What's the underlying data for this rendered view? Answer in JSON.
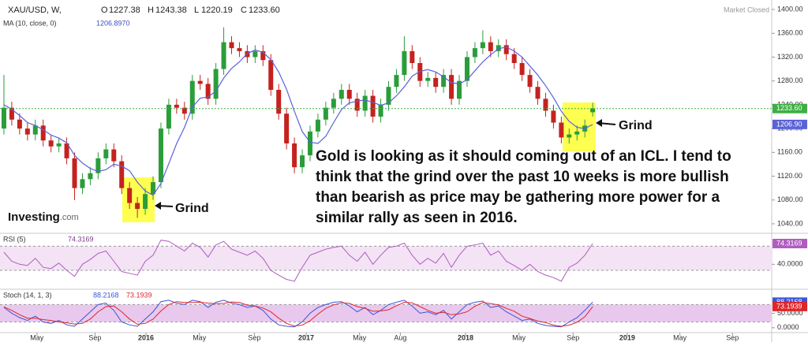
{
  "chart_data": [
    {
      "type": "candlestick",
      "title": "XAU/USD, W,",
      "status": "Market Closed",
      "ohlc_letters": [
        "O",
        "H",
        "L",
        "C"
      ],
      "ohlc_labels": [
        "1227.38",
        "1243.38",
        "1220.19",
        "1233.60"
      ],
      "up_color": "#2a9d3a",
      "down_color": "#c4221f",
      "x": [
        0,
        1,
        2,
        3,
        4,
        5,
        6,
        7,
        8,
        9,
        10,
        11,
        12,
        13,
        14,
        15,
        16,
        17,
        18,
        19,
        20,
        21,
        22,
        23,
        24,
        25,
        26,
        27,
        28,
        29,
        30,
        31,
        32,
        33,
        34,
        35,
        36,
        37,
        38,
        39,
        40,
        41,
        42,
        43,
        44,
        45,
        46,
        47,
        48,
        49,
        50,
        51,
        52,
        53,
        54,
        55,
        56,
        57,
        58,
        59,
        60,
        61,
        62,
        63,
        64,
        65,
        66,
        67,
        68,
        69,
        70,
        71,
        72,
        73,
        74,
        75
      ],
      "open": [
        1200,
        1235,
        1215,
        1200,
        1190,
        1205,
        1180,
        1170,
        1175,
        1150,
        1100,
        1115,
        1125,
        1150,
        1165,
        1145,
        1100,
        1075,
        1065,
        1090,
        1110,
        1200,
        1240,
        1235,
        1225,
        1280,
        1275,
        1250,
        1300,
        1345,
        1335,
        1330,
        1320,
        1330,
        1315,
        1265,
        1225,
        1175,
        1135,
        1155,
        1195,
        1215,
        1235,
        1250,
        1265,
        1250,
        1230,
        1255,
        1220,
        1240,
        1270,
        1290,
        1330,
        1310,
        1280,
        1285,
        1270,
        1290,
        1250,
        1280,
        1320,
        1335,
        1345,
        1330,
        1340,
        1325,
        1310,
        1290,
        1270,
        1250,
        1230,
        1210,
        1185,
        1190,
        1195,
        1227.38
      ],
      "high": [
        1290,
        1245,
        1225,
        1210,
        1215,
        1215,
        1190,
        1185,
        1185,
        1160,
        1125,
        1135,
        1160,
        1175,
        1175,
        1155,
        1110,
        1085,
        1100,
        1120,
        1210,
        1250,
        1250,
        1245,
        1290,
        1290,
        1285,
        1310,
        1370,
        1355,
        1345,
        1340,
        1340,
        1340,
        1325,
        1275,
        1235,
        1185,
        1165,
        1205,
        1225,
        1245,
        1260,
        1275,
        1275,
        1260,
        1265,
        1265,
        1250,
        1280,
        1300,
        1355,
        1340,
        1320,
        1295,
        1295,
        1300,
        1300,
        1290,
        1330,
        1345,
        1365,
        1355,
        1350,
        1350,
        1335,
        1320,
        1300,
        1280,
        1260,
        1240,
        1220,
        1200,
        1205,
        1215,
        1243.38
      ],
      "low": [
        1190,
        1205,
        1190,
        1180,
        1180,
        1170,
        1160,
        1160,
        1140,
        1080,
        1090,
        1105,
        1115,
        1140,
        1135,
        1090,
        1065,
        1050,
        1055,
        1080,
        1100,
        1190,
        1225,
        1215,
        1215,
        1265,
        1240,
        1240,
        1290,
        1325,
        1320,
        1310,
        1310,
        1305,
        1255,
        1215,
        1165,
        1125,
        1125,
        1145,
        1185,
        1205,
        1225,
        1240,
        1240,
        1220,
        1220,
        1210,
        1210,
        1230,
        1260,
        1280,
        1300,
        1270,
        1270,
        1260,
        1260,
        1240,
        1240,
        1270,
        1310,
        1325,
        1320,
        1320,
        1315,
        1300,
        1280,
        1260,
        1240,
        1220,
        1200,
        1175,
        1175,
        1180,
        1185,
        1220.19
      ],
      "close": [
        1235,
        1215,
        1200,
        1190,
        1205,
        1180,
        1170,
        1175,
        1150,
        1100,
        1115,
        1125,
        1150,
        1165,
        1145,
        1100,
        1075,
        1065,
        1090,
        1110,
        1200,
        1240,
        1235,
        1225,
        1280,
        1275,
        1250,
        1300,
        1345,
        1335,
        1330,
        1320,
        1330,
        1315,
        1265,
        1225,
        1175,
        1135,
        1155,
        1195,
        1215,
        1235,
        1250,
        1265,
        1250,
        1230,
        1255,
        1220,
        1240,
        1270,
        1290,
        1330,
        1310,
        1280,
        1285,
        1270,
        1290,
        1250,
        1280,
        1320,
        1335,
        1345,
        1330,
        1340,
        1325,
        1310,
        1290,
        1270,
        1250,
        1230,
        1210,
        1185,
        1190,
        1195,
        1205,
        1233.6
      ],
      "overlay": {
        "title": "MA (10, close, 0)",
        "color": "#5a62d8",
        "last_label": "1206.8970",
        "axis_label": "1206.90",
        "values": [
          1240,
          1232,
          1222,
          1210,
          1205,
          1198,
          1189,
          1184,
          1176,
          1155,
          1142,
          1133,
          1128,
          1131,
          1140,
          1137,
          1129,
          1110,
          1095,
          1088,
          1108,
          1141,
          1175,
          1202,
          1236,
          1251,
          1253,
          1263,
          1285,
          1301,
          1312,
          1326,
          1332,
          1328,
          1316,
          1295,
          1266,
          1229,
          1195,
          1177,
          1175,
          1187,
          1210,
          1232,
          1243,
          1246,
          1248,
          1244,
          1239,
          1243,
          1255,
          1270,
          1288,
          1296,
          1299,
          1295,
          1287,
          1277,
          1275,
          1282,
          1297,
          1312,
          1324,
          1334,
          1337,
          1330,
          1320,
          1305,
          1290,
          1272,
          1252,
          1229,
          1212,
          1202,
          1200,
          1206.897
        ]
      },
      "last_line_color": "#3cb043",
      "xlim": [
        -0.5,
        97.8
      ],
      "xticks": [
        {
          "value": 4.2,
          "label": "May"
        },
        {
          "value": 11.6,
          "label": "Sep"
        },
        {
          "value": 18.1,
          "label": "2016"
        },
        {
          "value": 24.9,
          "label": "May"
        },
        {
          "value": 31.9,
          "label": "Sep"
        },
        {
          "value": 38.5,
          "label": "2017"
        },
        {
          "value": 45.3,
          "label": "May"
        },
        {
          "value": 50.5,
          "label": "Aug"
        },
        {
          "value": 58.8,
          "label": "2018"
        },
        {
          "value": 65.6,
          "label": "May"
        },
        {
          "value": 72.5,
          "label": "Sep"
        },
        {
          "value": 79.4,
          "label": "2019"
        },
        {
          "value": 86.1,
          "label": "May"
        },
        {
          "value": 92.8,
          "label": "Sep"
        }
      ],
      "ylim": [
        1025.4,
        1415.9
      ],
      "yticks": [
        {
          "value": 1040,
          "label": "1040.00"
        },
        {
          "value": 1080,
          "label": "1080.00"
        },
        {
          "value": 1120,
          "label": "1120.00"
        },
        {
          "value": 1160,
          "label": "1160.00"
        },
        {
          "value": 1200,
          "label": "1200.00"
        },
        {
          "value": 1240,
          "label": "1240.00"
        },
        {
          "value": 1280,
          "label": "1280.00"
        },
        {
          "value": 1320,
          "label": "1320.00"
        },
        {
          "value": 1360,
          "label": "1360.00"
        },
        {
          "value": 1400,
          "label": "1400.00"
        }
      ],
      "grid": false,
      "annotations": {
        "text": [
          "Gold is looking as it should coming out of an ICL. I tend to",
          "think that the grind over the past 10 weeks is more bullish",
          "than bearish as price may be gathering more power for a",
          "similar rally as seen in 2016."
        ],
        "marks": [
          "Grind",
          "Grind"
        ]
      }
    },
    {
      "type": "line",
      "title": "RSI (5)",
      "color": "#b05cc0",
      "band_color": "#f3e3f5",
      "levels": [
        30,
        70
      ],
      "values": [
        60,
        45,
        40,
        38,
        50,
        35,
        33,
        42,
        30,
        20,
        40,
        48,
        58,
        62,
        45,
        28,
        25,
        22,
        45,
        55,
        80,
        78,
        70,
        62,
        75,
        68,
        52,
        72,
        78,
        65,
        60,
        55,
        62,
        50,
        30,
        22,
        15,
        12,
        35,
        55,
        60,
        65,
        68,
        70,
        55,
        45,
        60,
        40,
        55,
        68,
        70,
        75,
        55,
        40,
        50,
        42,
        58,
        35,
        55,
        70,
        72,
        75,
        55,
        62,
        45,
        38,
        30,
        40,
        28,
        22,
        18,
        12,
        35,
        42,
        55,
        74.3169
      ],
      "ylim": [
        0,
        90
      ],
      "yticks": [
        {
          "value": 40,
          "label": "40.0000"
        }
      ]
    },
    {
      "type": "line",
      "title": "Stoch (14, 1, 3)",
      "band_color": "#e9c8ee",
      "levels": [
        20,
        80
      ],
      "series": [
        {
          "color": "#3b55d9",
          "values": [
            70,
            50,
            35,
            25,
            40,
            20,
            15,
            25,
            10,
            5,
            30,
            55,
            80,
            85,
            60,
            20,
            10,
            5,
            30,
            55,
            90,
            95,
            85,
            80,
            95,
            90,
            70,
            88,
            95,
            85,
            80,
            70,
            75,
            60,
            30,
            10,
            5,
            3,
            20,
            50,
            70,
            80,
            88,
            90,
            75,
            55,
            70,
            45,
            60,
            80,
            88,
            95,
            75,
            50,
            55,
            45,
            60,
            30,
            55,
            80,
            88,
            92,
            70,
            75,
            55,
            40,
            25,
            30,
            15,
            8,
            5,
            3,
            20,
            35,
            60,
            88.2168
          ]
        },
        {
          "color": "#e0262b",
          "values": [
            72,
            60,
            45,
            33,
            33,
            28,
            25,
            20,
            17,
            13,
            15,
            30,
            55,
            73,
            75,
            55,
            30,
            12,
            15,
            30,
            58,
            80,
            90,
            87,
            87,
            88,
            85,
            83,
            84,
            89,
            87,
            78,
            75,
            68,
            55,
            33,
            15,
            6,
            9,
            24,
            47,
            67,
            79,
            86,
            84,
            73,
            67,
            57,
            58,
            62,
            76,
            88,
            86,
            73,
            60,
            50,
            53,
            45,
            48,
            55,
            74,
            87,
            83,
            79,
            67,
            57,
            40,
            32,
            23,
            18,
            9,
            5,
            9,
            19,
            38,
            73.1939
          ]
        }
      ],
      "ylim": [
        -14,
        130
      ],
      "yticks": [
        {
          "value": 50,
          "label": "50.0000"
        },
        {
          "value": 0,
          "label": "0.0000"
        }
      ]
    }
  ],
  "logo": {
    "brand": "Investing",
    "suffix": ".com"
  }
}
